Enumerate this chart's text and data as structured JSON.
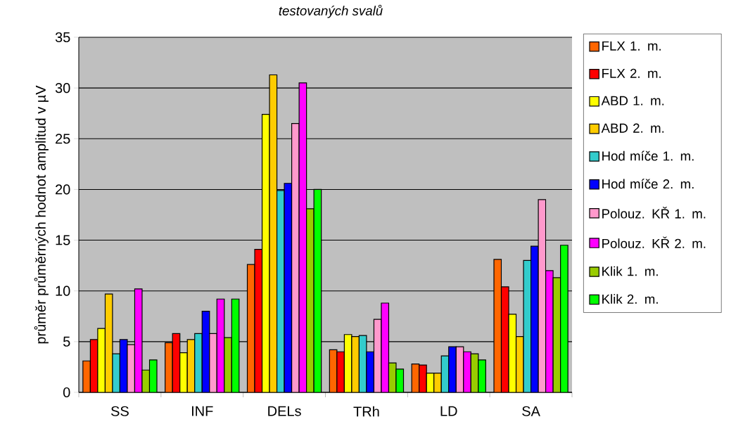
{
  "chart_data": {
    "type": "bar",
    "title": "testovaných svalů",
    "ylabel": "průměr průměrných hodnot amplitud v µV",
    "categories": [
      "SS",
      "INF",
      "DELs",
      "TRh",
      "LD",
      "SA"
    ],
    "series": [
      {
        "name": "FLX 1. m.",
        "color": "#ff6600",
        "values": [
          3.1,
          4.9,
          12.6,
          4.2,
          2.8,
          13.1
        ]
      },
      {
        "name": "FLX 2. m.",
        "color": "#ff0000",
        "values": [
          5.2,
          5.8,
          14.1,
          4.0,
          2.7,
          10.4
        ]
      },
      {
        "name": "ABD 1. m.",
        "color": "#ffff00",
        "values": [
          6.3,
          3.9,
          27.4,
          5.7,
          1.9,
          7.7
        ]
      },
      {
        "name": "ABD 2. m.",
        "color": "#ffcc00",
        "values": [
          9.7,
          5.2,
          31.3,
          5.5,
          1.9,
          5.5
        ]
      },
      {
        "name": "Hod míče 1. m.",
        "color": "#33cccc",
        "values": [
          3.8,
          5.8,
          19.9,
          5.6,
          3.6,
          13.0
        ]
      },
      {
        "name": "Hod míče 2. m.",
        "color": "#0000ff",
        "values": [
          5.2,
          8.0,
          20.6,
          4.0,
          4.5,
          14.4
        ]
      },
      {
        "name": "Polouz. KŘ 1. m.",
        "color": "#ff99cc",
        "values": [
          4.7,
          5.8,
          26.5,
          7.2,
          4.5,
          19.0
        ]
      },
      {
        "name": "Polouz. KŘ 2. m.",
        "color": "#ff00ff",
        "values": [
          10.2,
          9.2,
          30.5,
          8.8,
          4.0,
          12.0
        ]
      },
      {
        "name": "Klik 1. m.",
        "color": "#99cc00",
        "values": [
          2.2,
          5.4,
          18.1,
          2.9,
          3.8,
          11.3
        ]
      },
      {
        "name": "Klik 2. m.",
        "color": "#00ff00",
        "values": [
          3.2,
          9.2,
          20.0,
          2.3,
          3.2,
          14.5
        ]
      }
    ],
    "ylim": [
      0,
      35
    ],
    "yticks": [
      0,
      5,
      10,
      15,
      20,
      25,
      30,
      35
    ],
    "grid": "y",
    "legend": "right"
  }
}
